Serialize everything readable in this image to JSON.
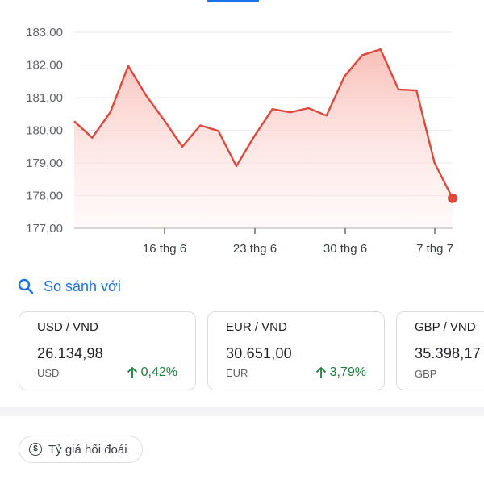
{
  "chart_data": {
    "type": "area",
    "y_ticks": [
      "183,00",
      "182,00",
      "181,00",
      "180,00",
      "179,00",
      "178,00",
      "177,00"
    ],
    "ylim": [
      177,
      183
    ],
    "x_ticks": [
      "16 thg 6",
      "23 thg 6",
      "30 thg 6",
      "7 thg 7"
    ],
    "series": [
      {
        "values": [
          180.28,
          179.77,
          180.55,
          181.97,
          181.06,
          180.3,
          179.5,
          180.15,
          179.98,
          178.9,
          179.82,
          180.65,
          180.55,
          180.68,
          180.45,
          181.65,
          182.3,
          182.48,
          181.25,
          181.22,
          179.0,
          177.92
        ]
      }
    ],
    "colors": {
      "line": "#e0483c",
      "fill": "#fde2df",
      "grid": "#e8eaed",
      "axis": "#b0b0b0"
    },
    "grid": true
  },
  "compare": {
    "icon": "search-icon",
    "label": "So sánh với"
  },
  "cards": [
    {
      "pair": "USD / VND",
      "rate": "26.134,98",
      "code": "USD",
      "change": "0,42%"
    },
    {
      "pair": "EUR / VND",
      "rate": "30.651,00",
      "code": "EUR",
      "change": "3,79%"
    },
    {
      "pair": "GBP / VND",
      "rate": "35.398,17",
      "code": "GBP",
      "change": ""
    }
  ],
  "chip": {
    "icon": "dollar-circle-icon",
    "label": "Tỷ giá hối đoái"
  }
}
